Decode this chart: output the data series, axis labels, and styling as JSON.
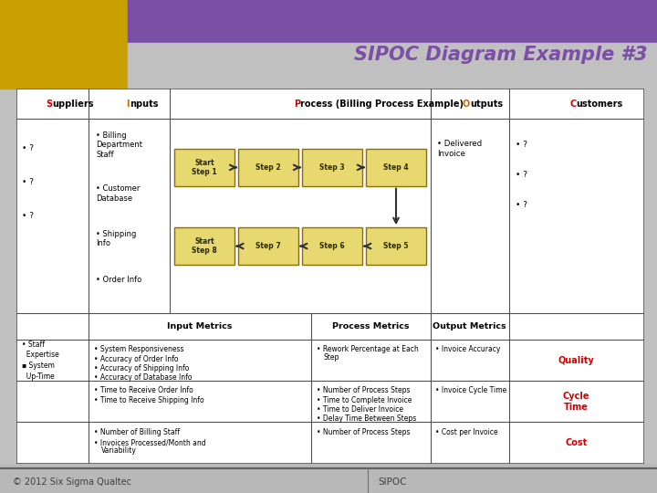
{
  "title": "SIPOC Diagram Example #3",
  "title_color": "#7B4FA6",
  "box_fill": "#E8D870",
  "box_border": "#8B7000",
  "arrow_color": "#303030",
  "process_row1": [
    "Start\nStep 1",
    "Step 2",
    "Step 3",
    "Step 4"
  ],
  "process_row2": [
    "Start\nStep 8",
    "Step 7",
    "Step 6",
    "Step 5"
  ],
  "suppliers_items": [
    "?",
    "?",
    "?"
  ],
  "inputs_items": [
    "Billing\nDepartment\nStaff",
    "Customer\nDatabase",
    "Shipping\nInfo",
    "Order Info"
  ],
  "outputs_items": [
    "Delivered\nInvoice"
  ],
  "customers_items": [
    "?",
    "?",
    "?"
  ],
  "metrics_col1_header": "Input Metrics",
  "metrics_col2_header": "Process Metrics",
  "metrics_col3_header": "Output Metrics",
  "metrics_input_q": [
    "System Responsiveness",
    "Accuracy of Order Info",
    "Accuracy of Shipping Info",
    "Accuracy of Database Info"
  ],
  "metrics_input_ct": [
    "Time to Receive Order Info",
    "Time to Receive Shipping Info"
  ],
  "metrics_input_cost": [
    "Number of Billing Staff",
    "Invoices Processed/Month and\nVariability"
  ],
  "metrics_process_q": [
    "Rework Percentage at Each\nStep"
  ],
  "metrics_process_ct": [
    "Number of Process Steps",
    "Time to Complete Invoice",
    "Time to Deliver Invoice",
    "Delay Time Between Steps"
  ],
  "metrics_process_cost": [
    "Number of Process Steps"
  ],
  "metrics_output_q": [
    "Invoice Accuracy"
  ],
  "metrics_output_ct": [
    "Invoice Cycle Time"
  ],
  "metrics_output_cost": [
    "Cost per Invoice"
  ],
  "quality_label": "Quality",
  "cycletime_label": "Cycle\nTime",
  "cost_label": "Cost",
  "metric_label_color": "#CC0000",
  "footer_left": "© 2012 Six Sigma Qualtec",
  "footer_right": "SIPOC",
  "header_texts": [
    [
      "S",
      "uppliers"
    ],
    [
      "I",
      "nputs"
    ],
    [
      "P",
      "rocess (Billing Process Example)"
    ],
    [
      "O",
      "utputs"
    ],
    [
      "C",
      "ustomers"
    ]
  ],
  "sipoc_colors": [
    "#CC0000",
    "#CC6600",
    "#CC0000",
    "#CC6600",
    "#CC0000"
  ]
}
